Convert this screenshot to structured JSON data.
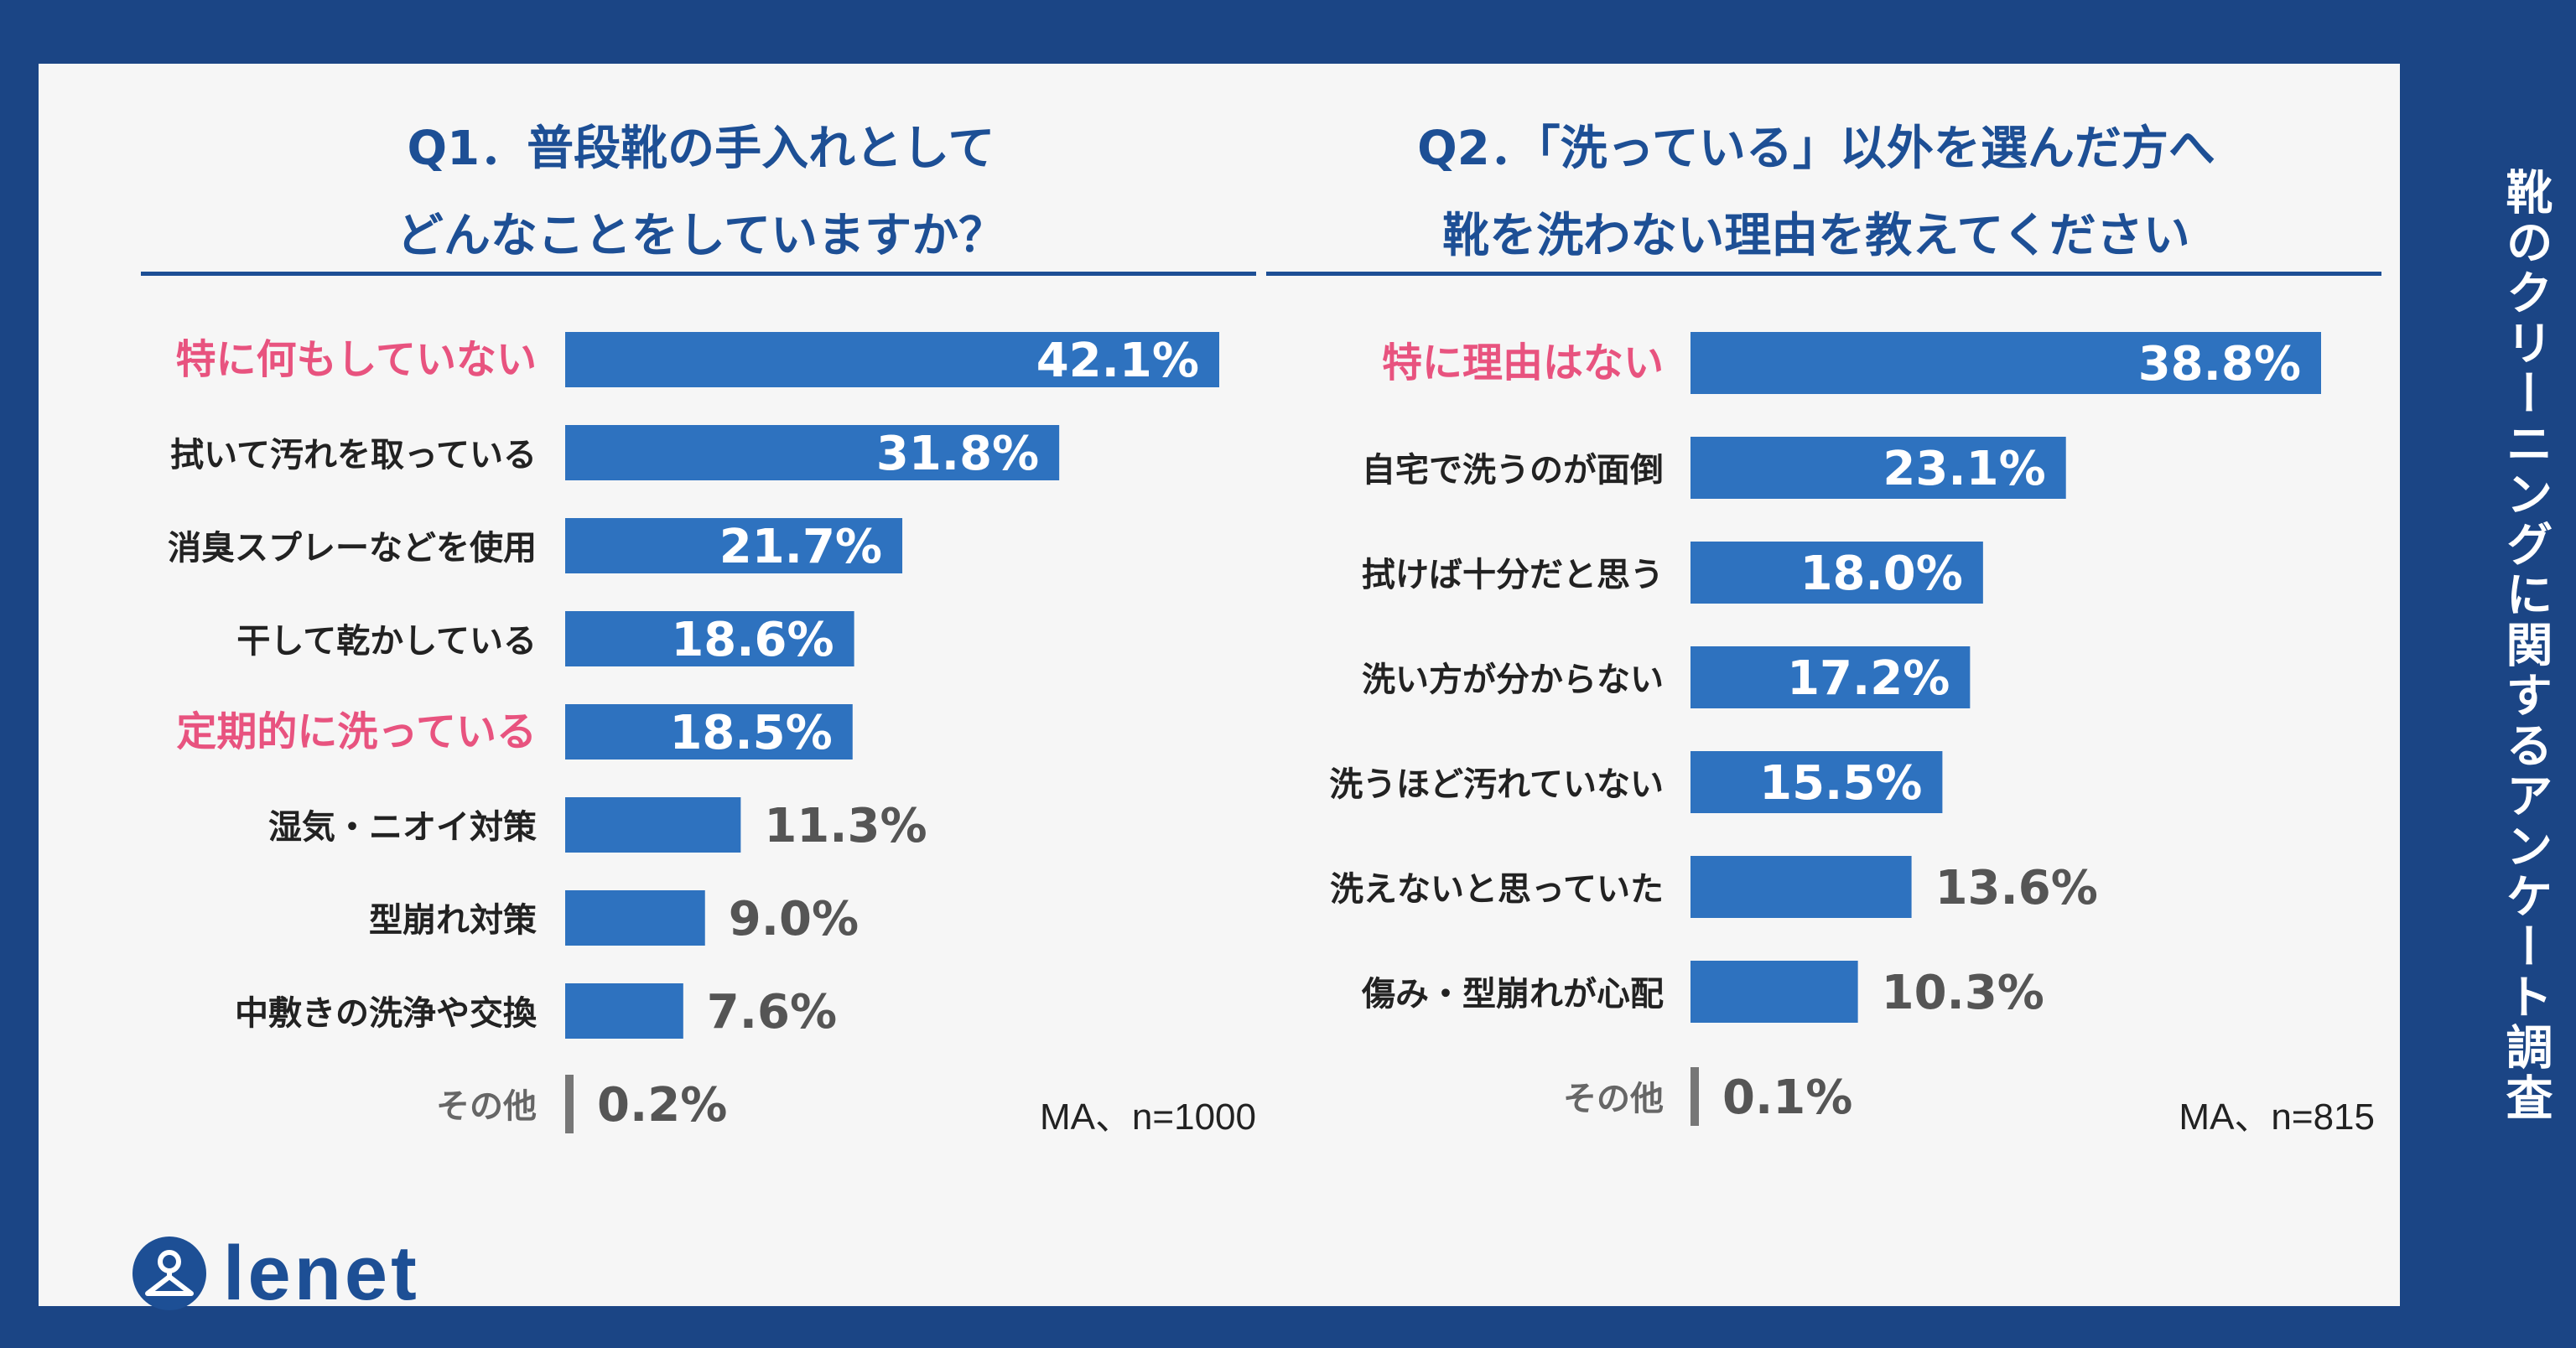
{
  "side_title": "靴のクリーニングに関するアンケート調査",
  "logo": {
    "text": "lenet"
  },
  "colors": {
    "bar": "#2e72bf",
    "other_bar": "#777777",
    "highlight": "#e8537f",
    "label": "#222222",
    "outside_value": "#555555",
    "inside_value": "#ffffff"
  },
  "chart_data": [
    {
      "type": "bar",
      "orientation": "horizontal",
      "title_lines": [
        "Q1．普段靴の手入れとして",
        "どんなことをしていますか？"
      ],
      "note": "MA、n=1000",
      "unit": "%",
      "xlim": [
        0,
        42.1
      ],
      "categories": [
        "特に何もしていない",
        "拭いて汚れを取っている",
        "消臭スプレーなどを使用",
        "干して乾かしている",
        "定期的に洗っている",
        "湿気・ニオイ対策",
        "型崩れ対策",
        "中敷きの洗浄や交換",
        "その他"
      ],
      "values": [
        42.1,
        31.8,
        21.7,
        18.6,
        18.5,
        11.3,
        9.0,
        7.6,
        0.2
      ],
      "value_labels": [
        "42.1%",
        "31.8%",
        "21.7%",
        "18.6%",
        "18.5%",
        "11.3%",
        "9.0%",
        "7.6%",
        "0.2%"
      ],
      "highlighted": [
        true,
        false,
        false,
        false,
        true,
        false,
        false,
        false,
        false
      ]
    },
    {
      "type": "bar",
      "orientation": "horizontal",
      "title_lines": [
        "Q2．「洗っている」以外を選んだ方へ",
        "靴を洗わない理由を教えてください"
      ],
      "note": "MA、n=815",
      "unit": "%",
      "xlim": [
        0,
        38.8
      ],
      "categories": [
        "特に理由はない",
        "自宅で洗うのが面倒",
        "拭けば十分だと思う",
        "洗い方が分からない",
        "洗うほど汚れていない",
        "洗えないと思っていた",
        "傷み・型崩れが心配",
        "その他"
      ],
      "values": [
        38.8,
        23.1,
        18.0,
        17.2,
        15.5,
        13.6,
        10.3,
        0.1
      ],
      "value_labels": [
        "38.8%",
        "23.1%",
        "18.0%",
        "17.2%",
        "15.5%",
        "13.6%",
        "10.3%",
        "0.1%"
      ],
      "highlighted": [
        true,
        false,
        false,
        false,
        false,
        false,
        false,
        false
      ]
    }
  ]
}
